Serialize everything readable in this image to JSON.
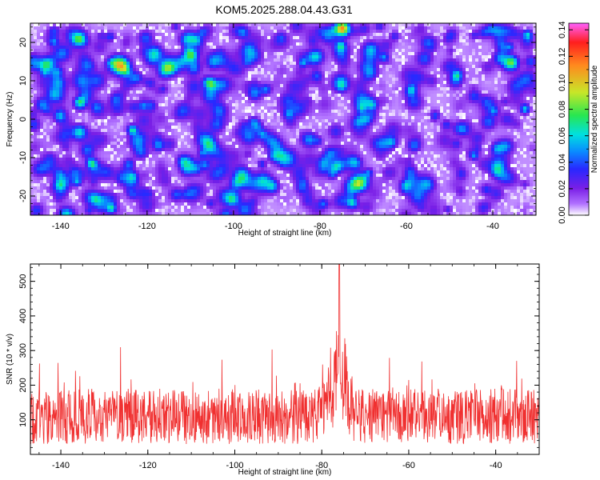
{
  "title": "KOM5.2025.288.04.43.G31",
  "chart_data": [
    {
      "type": "heatmap",
      "xlabel": "Height of straight line (km)",
      "ylabel": "Frequency (Hz)",
      "xlim": [
        -147,
        -30
      ],
      "ylim": [
        -25,
        25
      ],
      "xticks": [
        -140,
        -120,
        -100,
        -80,
        -60,
        -40
      ],
      "yticks": [
        -20,
        -10,
        0,
        10,
        20
      ],
      "colorbar": {
        "label": "Normalized spectral amplitude",
        "range": [
          0,
          0.145
        ],
        "ticks": [
          0.0,
          0.02,
          0.04,
          0.06,
          0.08,
          0.1,
          0.12,
          0.14
        ],
        "tick_labels": [
          "0.00",
          "0.02",
          "0.04",
          "0.06",
          "0.08",
          "0.10",
          "0.12",
          "0.14"
        ],
        "colormap": [
          "#ffffff",
          "#b070ff",
          "#7a1fe6",
          "#2828ff",
          "#0a8aff",
          "#00e0e0",
          "#28e650",
          "#c8e628",
          "#ff8a1e",
          "#ff1e1e",
          "#ff60ff"
        ]
      },
      "noise": {
        "background_mean": 0.03,
        "peak_max": 0.14
      }
    },
    {
      "type": "line",
      "xlabel": "Height of straight line (km)",
      "ylabel": "SNR (10 * v/v)",
      "xlim": [
        -147,
        -30
      ],
      "ylim": [
        0,
        550
      ],
      "xticks": [
        -140,
        -120,
        -100,
        -80,
        -60,
        -40
      ],
      "yticks": [
        100,
        200,
        300,
        400,
        500
      ],
      "color": "#f03030",
      "series": [
        {
          "name": "SNR",
          "baseline": 110,
          "spread": 80,
          "peak_center_km": -76,
          "peak_value": 550,
          "peak_width_km": 3
        }
      ]
    }
  ]
}
